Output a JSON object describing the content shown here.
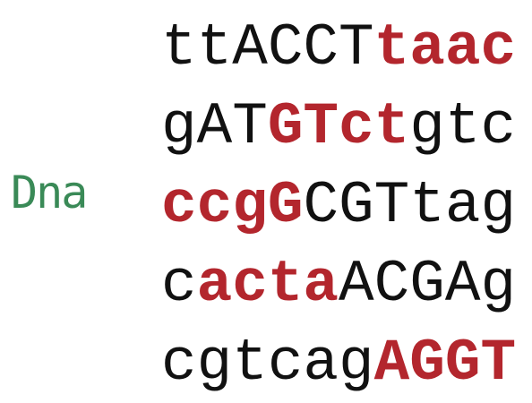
{
  "label": "Dna",
  "colors": {
    "label": "#3a8a57",
    "normal": "#111111",
    "highlight": "#b3262d"
  },
  "lines": [
    [
      {
        "text": "ttACCT",
        "bold": false
      },
      {
        "text": "taac",
        "bold": true
      }
    ],
    [
      {
        "text": "gAT",
        "bold": false
      },
      {
        "text": "GTct",
        "bold": true
      },
      {
        "text": "gtc",
        "bold": false
      }
    ],
    [
      {
        "text": "ccgG",
        "bold": true
      },
      {
        "text": "CGTtag",
        "bold": false
      }
    ],
    [
      {
        "text": "c",
        "bold": false
      },
      {
        "text": "acta",
        "bold": true
      },
      {
        "text": "ACGAg",
        "bold": false
      }
    ],
    [
      {
        "text": "cgtcag",
        "bold": false
      },
      {
        "text": "AGGT",
        "bold": true
      }
    ]
  ]
}
